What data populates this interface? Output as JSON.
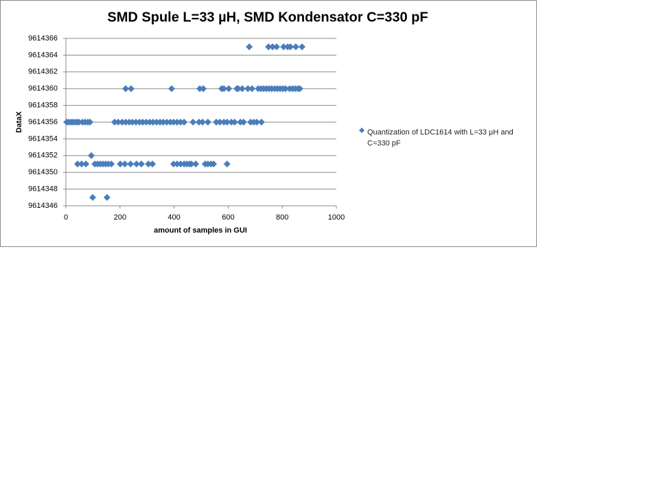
{
  "chart_data": {
    "type": "scatter",
    "title": "SMD Spule L=33 µH, SMD Kondensator C=330 pF",
    "x_label": "amount of samples in GUI",
    "y_label": "DataX",
    "xlim": [
      0,
      1000
    ],
    "xticks": [
      0,
      200,
      400,
      600,
      800,
      1000
    ],
    "ylim": [
      9614346,
      9614366
    ],
    "yticks": [
      9614346,
      9614348,
      9614350,
      9614352,
      9614354,
      9614356,
      9614358,
      9614360,
      9614362,
      9614364,
      9614366
    ],
    "grid": true,
    "legend": "right",
    "series": [
      {
        "name": "Quantization of LDC1614 with L=33 µH and C=330 pF",
        "color": "#4a7ebb",
        "x": [
          678,
          749,
          764,
          779,
          805,
          820,
          830,
          850,
          873,
          221,
          241,
          391,
          495,
          508,
          576,
          584,
          602,
          632,
          637,
          652,
          673,
          688,
          711,
          721,
          731,
          741,
          751,
          761,
          772,
          782,
          792,
          802,
          812,
          827,
          838,
          848,
          858,
          865,
          3,
          10,
          18,
          25,
          33,
          41,
          48,
          61,
          71,
          81,
          89,
          180,
          193,
          208,
          221,
          234,
          246,
          259,
          272,
          284,
          297,
          310,
          322,
          335,
          348,
          360,
          373,
          386,
          398,
          411,
          424,
          437,
          470,
          492,
          505,
          525,
          556,
          569,
          584,
          596,
          612,
          624,
          645,
          657,
          683,
          695,
          706,
          723,
          94,
          43,
          58,
          74,
          107,
          117,
          127,
          137,
          147,
          157,
          168,
          201,
          218,
          239,
          261,
          279,
          305,
          320,
          398,
          411,
          424,
          437,
          447,
          457,
          464,
          480,
          515,
          525,
          536,
          546,
          596,
          99,
          152
        ],
        "values": [
          9614365,
          9614365,
          9614365,
          9614365,
          9614365,
          9614365,
          9614365,
          9614365,
          9614365,
          9614360,
          9614360,
          9614360,
          9614360,
          9614360,
          9614360,
          9614360,
          9614360,
          9614360,
          9614360,
          9614360,
          9614360,
          9614360,
          9614360,
          9614360,
          9614360,
          9614360,
          9614360,
          9614360,
          9614360,
          9614360,
          9614360,
          9614360,
          9614360,
          9614360,
          9614360,
          9614360,
          9614360,
          9614360,
          9614356,
          9614356,
          9614356,
          9614356,
          9614356,
          9614356,
          9614356,
          9614356,
          9614356,
          9614356,
          9614356,
          9614356,
          9614356,
          9614356,
          9614356,
          9614356,
          9614356,
          9614356,
          9614356,
          9614356,
          9614356,
          9614356,
          9614356,
          9614356,
          9614356,
          9614356,
          9614356,
          9614356,
          9614356,
          9614356,
          9614356,
          9614356,
          9614356,
          9614356,
          9614356,
          9614356,
          9614356,
          9614356,
          9614356,
          9614356,
          9614356,
          9614356,
          9614356,
          9614356,
          9614356,
          9614356,
          9614356,
          9614356,
          9614352,
          9614351,
          9614351,
          9614351,
          9614351,
          9614351,
          9614351,
          9614351,
          9614351,
          9614351,
          9614351,
          9614351,
          9614351,
          9614351,
          9614351,
          9614351,
          9614351,
          9614351,
          9614351,
          9614351,
          9614351,
          9614351,
          9614351,
          9614351,
          9614351,
          9614351,
          9614351,
          9614351,
          9614351,
          9614351,
          9614351,
          9614347,
          9614347
        ]
      }
    ]
  }
}
